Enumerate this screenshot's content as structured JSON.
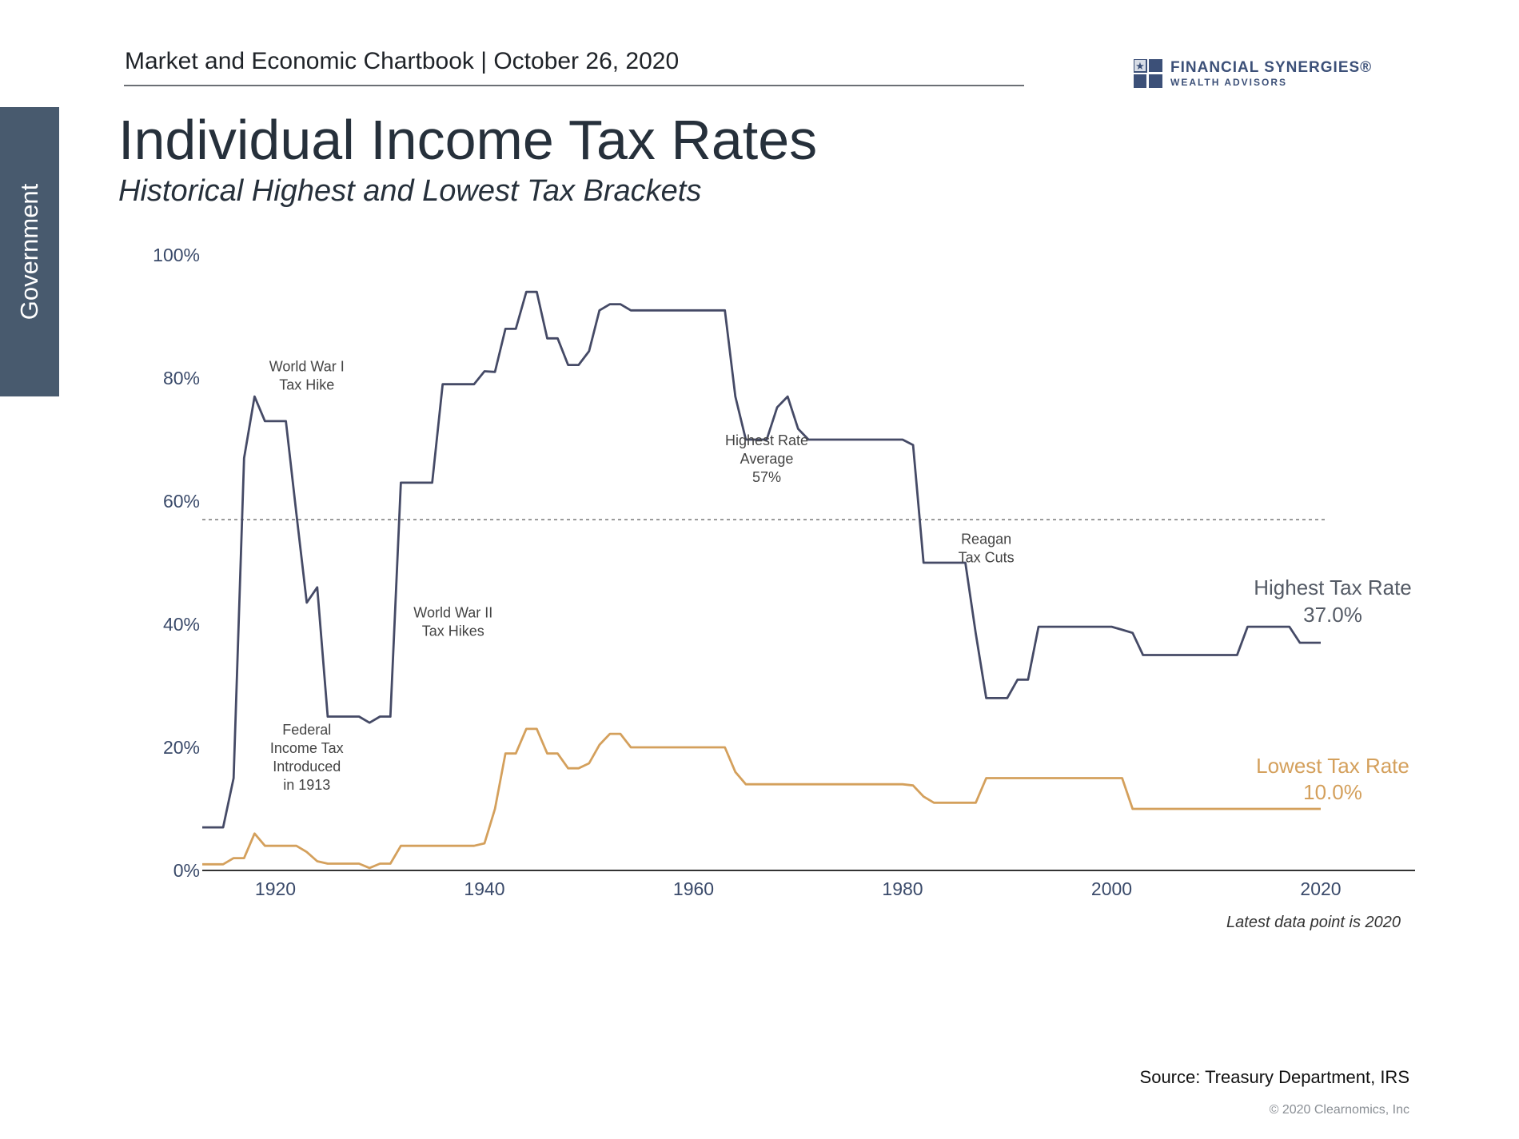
{
  "header": {
    "chartbook_line": "Market and Economic Chartbook | October 26, 2020"
  },
  "logo": {
    "name": "FINANCIAL SYNERGIES®",
    "subname": "WEALTH ADVISORS",
    "colors": {
      "blue": "#3c5078",
      "light": "#d8dde6"
    }
  },
  "side_tab": {
    "label": "Government",
    "color": "#485a6e"
  },
  "title": "Individual Income Tax Rates",
  "subtitle": "Historical Highest and Lowest Tax Brackets",
  "footnote": "Latest data point is 2020",
  "source": "Source: Treasury Department, IRS",
  "copyright": "© 2020 Clearnomics, Inc",
  "chart_data": {
    "type": "line",
    "title": "Individual Income Tax Rates",
    "subtitle": "Historical Highest and Lowest Tax Brackets",
    "xlabel": "",
    "ylabel": "",
    "xlim": [
      1913,
      2020
    ],
    "ylim": [
      0,
      100
    ],
    "x_ticks": [
      1920,
      1940,
      1960,
      1980,
      2000,
      2020
    ],
    "x_tick_labels": [
      "1920",
      "1940",
      "1960",
      "1980",
      "2000",
      "2020"
    ],
    "y_ticks": [
      0,
      20,
      40,
      60,
      80,
      100
    ],
    "y_tick_labels": [
      "0%",
      "20%",
      "40%",
      "60%",
      "80%",
      "100%"
    ],
    "grid": false,
    "colors": {
      "highest": "#454a66",
      "lowest": "#d4a05c",
      "axis": "#333333",
      "average": "#777777"
    },
    "reference_line": {
      "value": 57,
      "style": "dotted"
    },
    "series": [
      {
        "name": "Highest Tax Rate",
        "end_label": "37.0%",
        "x": [
          1913,
          1915,
          1916,
          1917,
          1918,
          1919,
          1920,
          1921,
          1922,
          1923,
          1924,
          1925,
          1926,
          1927,
          1928,
          1929,
          1930,
          1931,
          1932,
          1933,
          1934,
          1935,
          1936,
          1937,
          1938,
          1939,
          1940,
          1941,
          1942,
          1943,
          1944,
          1945,
          1946,
          1947,
          1948,
          1949,
          1950,
          1951,
          1952,
          1953,
          1954,
          1963,
          1964,
          1965,
          1966,
          1967,
          1968,
          1969,
          1970,
          1971,
          1980,
          1981,
          1982,
          1983,
          1984,
          1985,
          1986,
          1987,
          1988,
          1989,
          1990,
          1991,
          1992,
          1993,
          2000,
          2001,
          2002,
          2003,
          2012,
          2013,
          2017,
          2018,
          2020
        ],
        "y": [
          7,
          7,
          15,
          67,
          77,
          73,
          73,
          73,
          58,
          43.5,
          46,
          25,
          25,
          25,
          25,
          24,
          25,
          25,
          63,
          63,
          63,
          63,
          79,
          79,
          79,
          79,
          81.1,
          81,
          88,
          88,
          94,
          94,
          86.45,
          86.45,
          82.13,
          82.13,
          84.36,
          91,
          92,
          92,
          91,
          91,
          77,
          70,
          70,
          70,
          75.25,
          77,
          71.75,
          70,
          70,
          69.13,
          50,
          50,
          50,
          50,
          50,
          38.5,
          28,
          28,
          28,
          31,
          31,
          39.6,
          39.6,
          39.1,
          38.6,
          35,
          35,
          39.6,
          39.6,
          37,
          37
        ]
      },
      {
        "name": "Lowest Tax Rate",
        "end_label": "10.0%",
        "x": [
          1913,
          1915,
          1916,
          1917,
          1918,
          1919,
          1920,
          1921,
          1922,
          1923,
          1924,
          1925,
          1926,
          1927,
          1928,
          1929,
          1930,
          1931,
          1932,
          1933,
          1934,
          1935,
          1936,
          1937,
          1938,
          1939,
          1940,
          1941,
          1942,
          1943,
          1944,
          1945,
          1946,
          1947,
          1948,
          1949,
          1950,
          1951,
          1952,
          1953,
          1954,
          1963,
          1964,
          1965,
          1966,
          1967,
          1968,
          1969,
          1970,
          1971,
          1980,
          1981,
          1982,
          1983,
          1984,
          1985,
          1986,
          1987,
          1988,
          1989,
          1990,
          1991,
          1992,
          1993,
          2000,
          2001,
          2002,
          2003,
          2012,
          2013,
          2017,
          2018,
          2020
        ],
        "y": [
          1,
          1,
          2,
          2,
          6,
          4,
          4,
          4,
          4,
          3,
          1.5,
          1.1,
          1.1,
          1.1,
          1.1,
          0.4,
          1.1,
          1.1,
          4,
          4,
          4,
          4,
          4,
          4,
          4,
          4,
          4.4,
          10,
          19,
          19,
          23,
          23,
          19,
          19,
          16.6,
          16.6,
          17.4,
          20.4,
          22.2,
          22.2,
          20,
          20,
          16,
          14,
          14,
          14,
          14,
          14,
          14,
          14,
          14,
          13.8,
          12,
          11,
          11,
          11,
          11,
          11,
          15,
          15,
          15,
          15,
          15,
          15,
          15,
          15,
          10,
          10,
          10,
          10,
          10,
          10,
          10
        ]
      }
    ],
    "annotations": [
      {
        "lines": [
          "World War I",
          "Tax Hike"
        ],
        "x": 1923,
        "y": 80.5
      },
      {
        "lines": [
          "Highest Rate",
          "Average",
          "57%"
        ],
        "x": 1967,
        "y": 67
      },
      {
        "lines": [
          "World War II",
          "Tax Hikes"
        ],
        "x": 1937,
        "y": 40.5
      },
      {
        "lines": [
          "Reagan",
          "Tax Cuts"
        ],
        "x": 1988,
        "y": 52.5
      },
      {
        "lines": [
          "Federal",
          "Income Tax",
          "Introduced",
          "in 1913"
        ],
        "x": 1923,
        "y": 18.5
      }
    ]
  }
}
